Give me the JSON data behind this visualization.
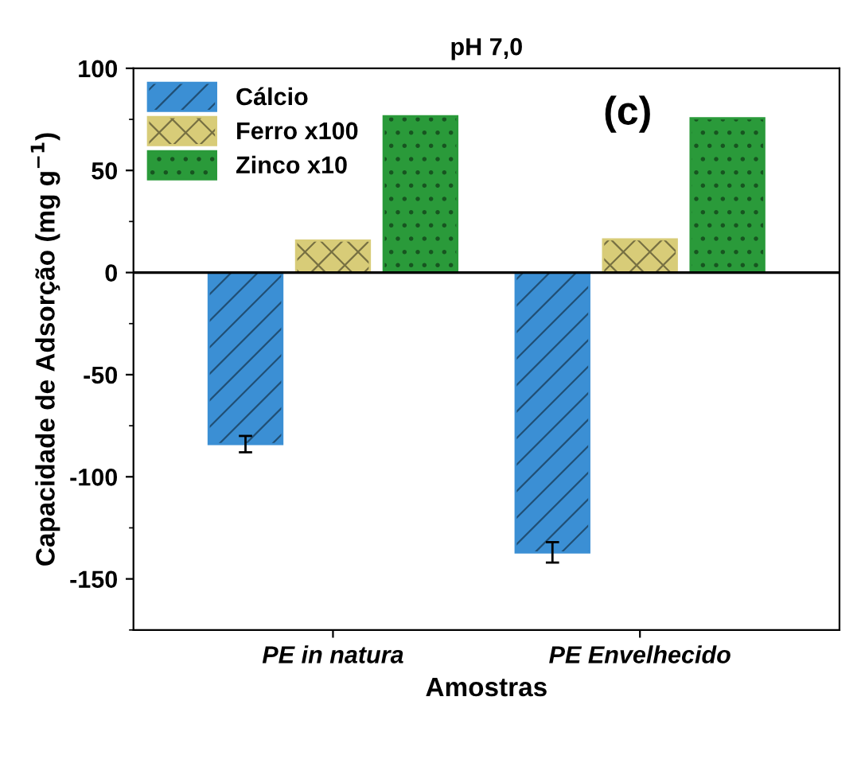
{
  "chart_data": {
    "type": "bar",
    "title": "pH 7,0",
    "xlabel": "Amostras",
    "ylabel": "Capacidade de Adsorção (mg g$^{−1}$)",
    "categories": [
      "PE in natura",
      "PE Envelhecido"
    ],
    "series": [
      {
        "name": "Cálcio",
        "color": "#3b8fd4",
        "values": [
          -84,
          -137
        ],
        "errors": [
          4,
          5
        ]
      },
      {
        "name": "Ferro x100",
        "color": "#d8cc78",
        "values": [
          15.7,
          16.2
        ]
      },
      {
        "name": "Zinco x10",
        "color": "#2a9a3a",
        "values": [
          76.5,
          75.5
        ]
      }
    ],
    "ylim": [
      -175,
      100
    ],
    "yticks": [
      -150,
      -100,
      -50,
      0,
      50,
      100
    ],
    "grid": false,
    "ref_lines": [
      {
        "axis": "y",
        "value": 0,
        "color": "#000000"
      }
    ],
    "legend": "top left",
    "annotations": [
      "(c)"
    ]
  }
}
